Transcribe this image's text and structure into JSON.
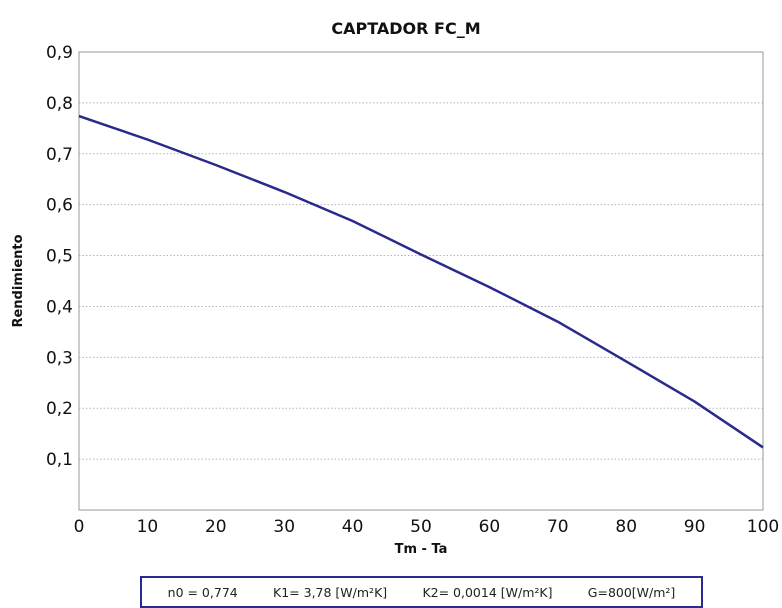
{
  "chart_data": {
    "type": "line",
    "title": "CAPTADOR FC_M",
    "xlabel": "Tm - Ta",
    "ylabel": "Rendimiento",
    "xlim": [
      0,
      100
    ],
    "ylim": [
      0,
      0.9
    ],
    "x_ticks": [
      "0",
      "10",
      "20",
      "30",
      "40",
      "50",
      "60",
      "70",
      "80",
      "90",
      "100"
    ],
    "y_ticks": [
      "0,1",
      "0,2",
      "0,3",
      "0,4",
      "0,5",
      "0,6",
      "0,7",
      "0,8",
      "0,9"
    ],
    "grid": "horizontal-dotted",
    "series": [
      {
        "color": "#2a2a8c",
        "x": [
          0,
          10,
          20,
          30,
          40,
          50,
          60,
          70,
          80,
          90,
          100
        ],
        "y": [
          0.774,
          0.728,
          0.678,
          0.625,
          0.568,
          0.502,
          0.438,
          0.37,
          0.292,
          0.213,
          0.123
        ]
      }
    ]
  },
  "legend_box": {
    "n0": "n0 = 0,774",
    "k1": "K1= 3,78 [W/m²K]",
    "k2": "K2= 0,0014 [W/m²K]",
    "g": "G=800[W/m²]"
  }
}
